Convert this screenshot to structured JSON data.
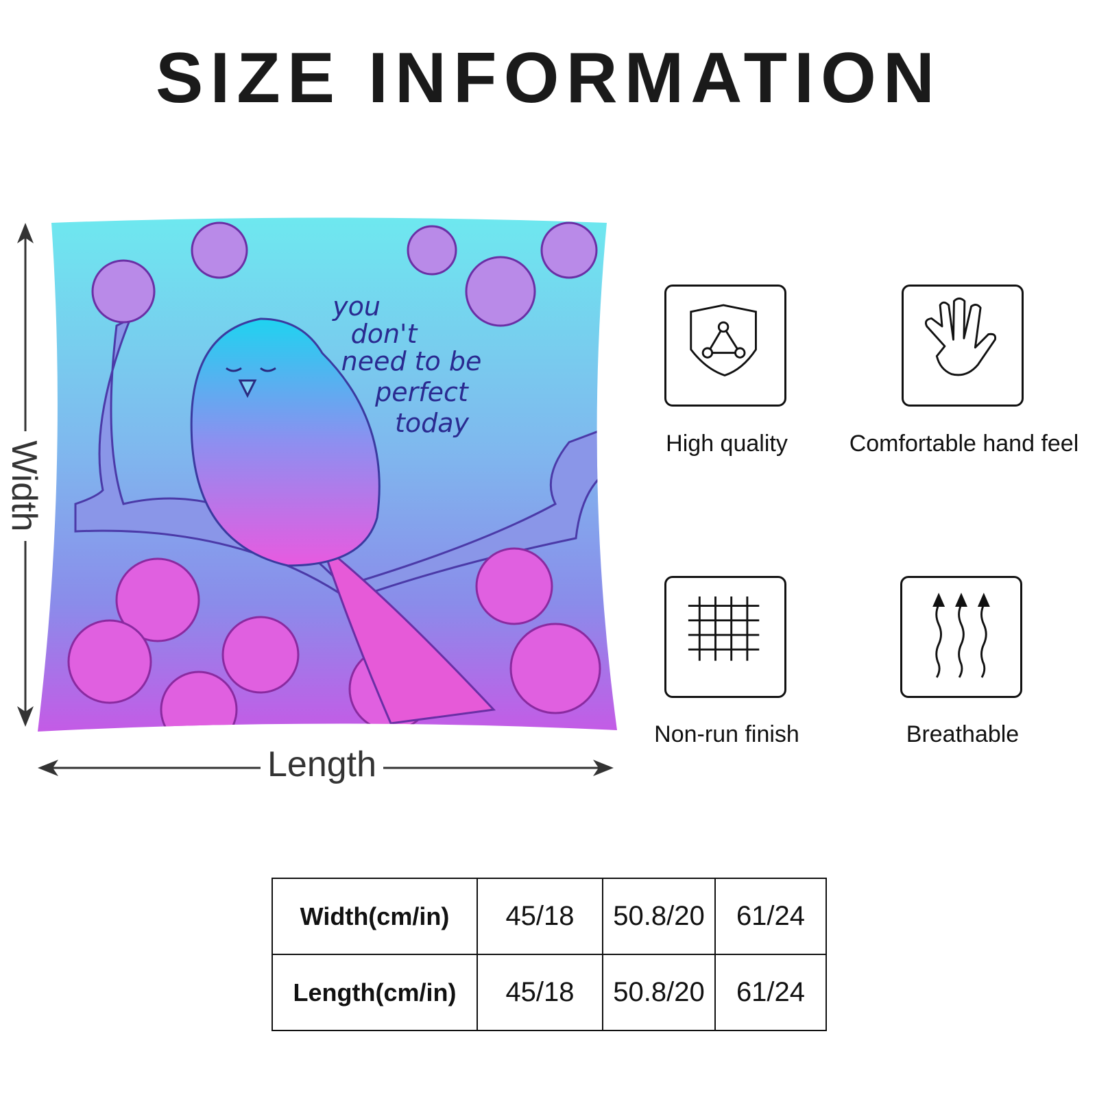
{
  "title": "SIZE INFORMATION",
  "pillow": {
    "quote": [
      "you",
      "don't",
      "need to be",
      "perfect",
      "today"
    ],
    "width_label": "Width",
    "length_label": "Length"
  },
  "features": [
    {
      "label": "High quality",
      "icon": "shield-icon"
    },
    {
      "label": "Comfortable hand feel",
      "icon": "hand-icon"
    },
    {
      "label": "Non-run finish",
      "icon": "grid-icon"
    },
    {
      "label": "Breathable",
      "icon": "airflow-arrows-icon"
    }
  ],
  "size_table": {
    "rows": [
      {
        "header": "Width(cm/in)",
        "values": [
          "45/18",
          "50.8/20",
          "61/24"
        ]
      },
      {
        "header": "Length(cm/in)",
        "values": [
          "45/18",
          "50.8/20",
          "61/24"
        ]
      }
    ]
  }
}
